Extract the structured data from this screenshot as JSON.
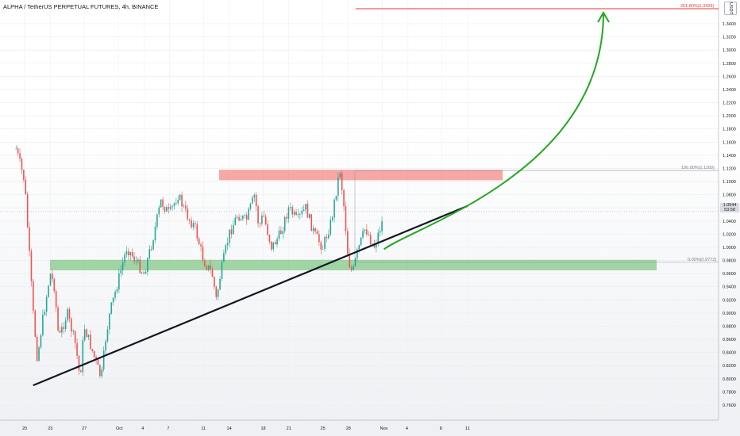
{
  "header": {
    "title": "ALPHA / TetherUS PERPETUAL FUTURES, 4h, BINANCE",
    "unit_badge": "USDT",
    "current_price_line1": "1.0544",
    "current_price_line2": "53:58"
  },
  "chart_data": {
    "type": "candlestick",
    "ylim": [
      0.76,
      1.36
    ],
    "y_ticks": [
      "0.7600",
      "0.7800",
      "0.8000",
      "0.8200",
      "0.8400",
      "0.8600",
      "0.8800",
      "0.9000",
      "0.9200",
      "0.9400",
      "0.9600",
      "0.9800",
      "1.0000",
      "1.0200",
      "1.0400",
      "1.0600",
      "1.0800",
      "1.1000",
      "1.1200",
      "1.1400",
      "1.1600",
      "1.1800",
      "1.2000",
      "1.2200",
      "1.2400",
      "1.2600",
      "1.2800",
      "1.3000",
      "1.3200",
      "1.3400"
    ],
    "x_ticks": [
      "20",
      "23",
      "27",
      "Oct",
      "4",
      "7",
      "11",
      "14",
      "18",
      "21",
      "25",
      "28",
      "Nov",
      "4",
      "8",
      "11"
    ],
    "fib_levels": [
      {
        "label": "261.80%(1.3429)",
        "value": 1.3429,
        "color": "#e53935"
      },
      {
        "label": "100.00%(1.1169)",
        "value": 1.1169,
        "color": "#9598a1"
      },
      {
        "label": "0.00%(0.9772)",
        "value": 0.9772,
        "color": "#9598a1"
      }
    ],
    "zones": [
      {
        "name": "resistance",
        "from": 1.102,
        "to": 1.118,
        "color": "#ef5350"
      },
      {
        "name": "support",
        "from": 0.965,
        "to": 0.981,
        "color": "#4caf50"
      }
    ],
    "trendline": {
      "from": [
        "2023-09-21",
        0.79
      ],
      "to": [
        "2023-11-11",
        1.063
      ]
    },
    "projection": {
      "from": 0.997,
      "to": 1.34,
      "color": "#22a722"
    },
    "price_path": [
      [
        "2023-09-19",
        1.15
      ],
      [
        "2023-09-20",
        1.1
      ],
      [
        "2023-09-20T12",
        1.0
      ],
      [
        "2023-09-21",
        0.9
      ],
      [
        "2023-09-21T12",
        0.83
      ],
      [
        "2023-09-22",
        0.88
      ],
      [
        "2023-09-23",
        0.96
      ],
      [
        "2023-09-23T12",
        0.94
      ],
      [
        "2023-09-24",
        0.86
      ],
      [
        "2023-09-25",
        0.9
      ],
      [
        "2023-09-26",
        0.85
      ],
      [
        "2023-09-26T12",
        0.8
      ],
      [
        "2023-09-27",
        0.88
      ],
      [
        "2023-09-28",
        0.84
      ],
      [
        "2023-09-29",
        0.8
      ],
      [
        "2023-09-29T12",
        0.86
      ],
      [
        "2023-09-30",
        0.9
      ],
      [
        "2023-10-01",
        0.95
      ],
      [
        "2023-10-02",
        1.0
      ],
      [
        "2023-10-03",
        0.98
      ],
      [
        "2023-10-04",
        0.96
      ],
      [
        "2023-10-05",
        1.01
      ],
      [
        "2023-10-06",
        1.07
      ],
      [
        "2023-10-07",
        1.05
      ],
      [
        "2023-10-08",
        1.08
      ],
      [
        "2023-10-09",
        1.05
      ],
      [
        "2023-10-10",
        1.03
      ],
      [
        "2023-10-11",
        0.98
      ],
      [
        "2023-10-12",
        0.96
      ],
      [
        "2023-10-12T12",
        0.92
      ],
      [
        "2023-10-13",
        0.96
      ],
      [
        "2023-10-14",
        1.02
      ],
      [
        "2023-10-15",
        1.05
      ],
      [
        "2023-10-16",
        1.04
      ],
      [
        "2023-10-17",
        1.08
      ],
      [
        "2023-10-17T12",
        1.03
      ],
      [
        "2023-10-18",
        1.05
      ],
      [
        "2023-10-19",
        1.0
      ],
      [
        "2023-10-20",
        1.02
      ],
      [
        "2023-10-21",
        1.06
      ],
      [
        "2023-10-22",
        1.04
      ],
      [
        "2023-10-23",
        1.06
      ],
      [
        "2023-10-24",
        1.02
      ],
      [
        "2023-10-25",
        1.0
      ],
      [
        "2023-10-26",
        1.04
      ],
      [
        "2023-10-27",
        1.12
      ],
      [
        "2023-10-27T12",
        1.06
      ],
      [
        "2023-10-28",
        0.98
      ],
      [
        "2023-10-28T12",
        0.96
      ],
      [
        "2023-10-29",
        0.99
      ],
      [
        "2023-10-30",
        1.03
      ],
      [
        "2023-10-31",
        1.0
      ],
      [
        "2023-11-01",
        1.04
      ]
    ]
  }
}
